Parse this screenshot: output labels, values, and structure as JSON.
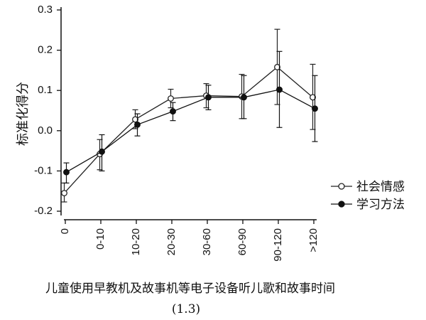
{
  "chart_data": {
    "type": "line",
    "title": "",
    "xlabel": "儿童使用早教机及故事机等电子设备听儿歌和故事时间",
    "ylabel": "标准化得分",
    "caption": "(1.3)",
    "categories": [
      "0",
      "0-10",
      "10-20",
      "20-30",
      "30-60",
      "60-90",
      "90-120",
      ">120"
    ],
    "yticks": [
      "-0.2",
      "-0.1",
      "0.0",
      "0.1",
      "0.2",
      "0.3"
    ],
    "ylim": [
      -0.2,
      0.3
    ],
    "grid": false,
    "legend_position": "right",
    "series": [
      {
        "name": "社会情感",
        "marker": "open-circle",
        "color": "#222222",
        "values": [
          -0.155,
          -0.058,
          0.028,
          0.08,
          0.087,
          0.085,
          0.158,
          0.083
        ],
        "error_low": [
          -0.177,
          -0.097,
          0.005,
          0.057,
          0.057,
          0.03,
          0.065,
          0.003
        ],
        "error_high": [
          -0.13,
          -0.022,
          0.052,
          0.103,
          0.117,
          0.14,
          0.252,
          0.165
        ]
      },
      {
        "name": "学习方法",
        "marker": "filled-circle",
        "color": "#111111",
        "values": [
          -0.103,
          -0.052,
          0.015,
          0.048,
          0.083,
          0.083,
          0.102,
          0.055
        ],
        "error_low": [
          -0.13,
          -0.1,
          -0.013,
          0.025,
          0.052,
          0.03,
          0.008,
          -0.027
        ],
        "error_high": [
          -0.08,
          -0.01,
          0.042,
          0.07,
          0.113,
          0.137,
          0.197,
          0.137
        ]
      }
    ]
  }
}
